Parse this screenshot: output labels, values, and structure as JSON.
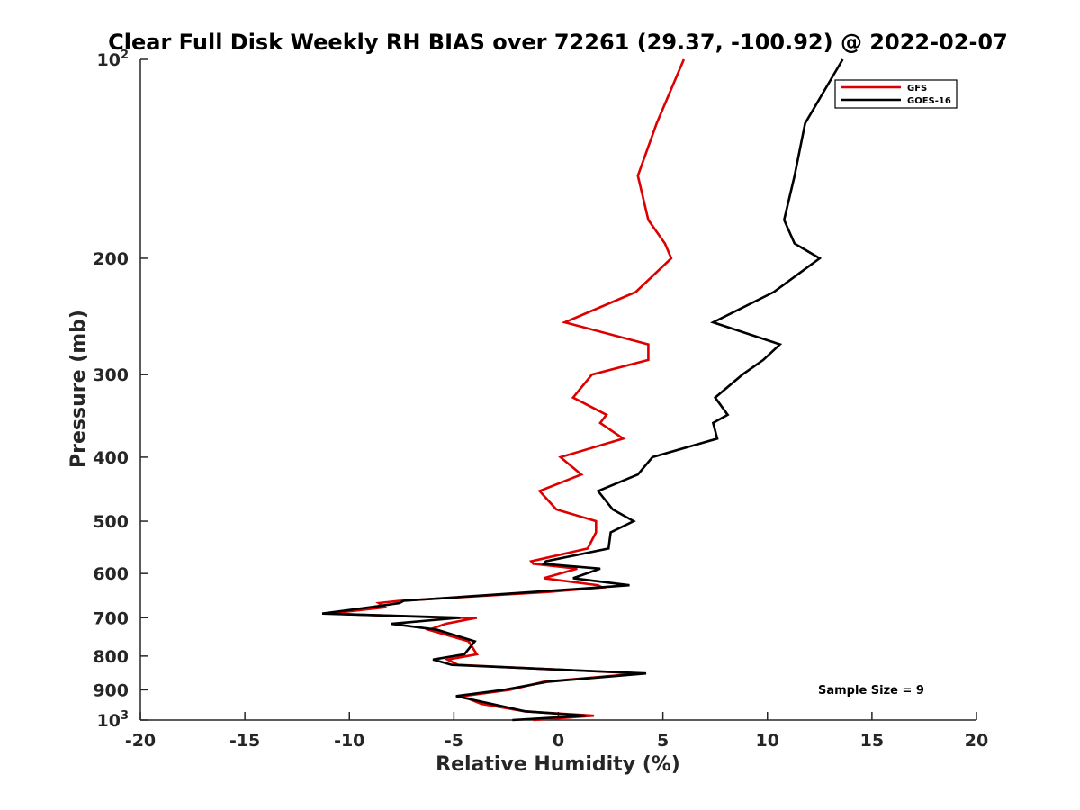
{
  "chart_data": {
    "type": "line",
    "title": "Clear Full Disk Weekly RH BIAS over 72261 (29.37, -100.92) @ 2022-02-07",
    "xlabel": "Relative Humidity (%)",
    "ylabel": "Pressure (mb)",
    "xlim": [
      -20,
      20
    ],
    "ylim": [
      100,
      1000
    ],
    "yscale": "log",
    "y_reversed": true,
    "grid": false,
    "legend_position": "top-right",
    "x_ticks": [
      -20,
      -15,
      -10,
      -5,
      0,
      5,
      10,
      15,
      20
    ],
    "x_tick_labels": [
      "-20",
      "-15",
      "-10",
      "-5",
      "0",
      "5",
      "10",
      "15",
      "20"
    ],
    "y_ticks": [
      100,
      200,
      300,
      400,
      500,
      600,
      700,
      800,
      900,
      1000
    ],
    "y_tick_labels": [
      {
        "base": "10",
        "sup": "2"
      },
      {
        "base": "200"
      },
      {
        "base": "300"
      },
      {
        "base": "400"
      },
      {
        "base": "500"
      },
      {
        "base": "600"
      },
      {
        "base": "700"
      },
      {
        "base": "800"
      },
      {
        "base": "900"
      },
      {
        "base": "10",
        "sup": "3"
      }
    ],
    "annotation": "Sample Size = 9",
    "series": [
      {
        "name": "GFS",
        "color": "#dd0000",
        "points": [
          [
            6.0,
            100
          ],
          [
            4.7,
            125
          ],
          [
            3.8,
            150
          ],
          [
            4.3,
            175
          ],
          [
            5.1,
            190
          ],
          [
            5.4,
            200
          ],
          [
            3.7,
            225
          ],
          [
            0.3,
            250
          ],
          [
            4.3,
            270
          ],
          [
            4.3,
            285
          ],
          [
            1.6,
            300
          ],
          [
            0.7,
            325
          ],
          [
            2.3,
            345
          ],
          [
            2.0,
            355
          ],
          [
            3.1,
            375
          ],
          [
            0.1,
            400
          ],
          [
            1.1,
            425
          ],
          [
            -0.9,
            450
          ],
          [
            -0.1,
            480
          ],
          [
            1.8,
            500
          ],
          [
            1.8,
            520
          ],
          [
            1.4,
            550
          ],
          [
            -1.3,
            575
          ],
          [
            -1.2,
            580
          ],
          [
            0.9,
            590
          ],
          [
            -0.7,
            610
          ],
          [
            1.9,
            625
          ],
          [
            2.1,
            630
          ],
          [
            -0.5,
            640
          ],
          [
            -7.6,
            660
          ],
          [
            -8.6,
            665
          ],
          [
            -8.3,
            675
          ],
          [
            -10.9,
            690
          ],
          [
            -5.4,
            700
          ],
          [
            -3.9,
            700
          ],
          [
            -5.4,
            715
          ],
          [
            -6.2,
            730
          ],
          [
            -4.3,
            760
          ],
          [
            -3.9,
            795
          ],
          [
            -5.3,
            810
          ],
          [
            -4.8,
            825
          ],
          [
            3.9,
            850
          ],
          [
            -0.7,
            875
          ],
          [
            -2.3,
            900
          ],
          [
            -4.6,
            920
          ],
          [
            -3.7,
            945
          ],
          [
            -1.6,
            970
          ],
          [
            1.7,
            985
          ],
          [
            -1.2,
            1000
          ]
        ]
      },
      {
        "name": "GOES-16",
        "color": "#000000",
        "points": [
          [
            13.6,
            100
          ],
          [
            11.8,
            125
          ],
          [
            11.3,
            150
          ],
          [
            10.8,
            175
          ],
          [
            11.3,
            190
          ],
          [
            12.5,
            200
          ],
          [
            10.3,
            225
          ],
          [
            7.4,
            250
          ],
          [
            10.6,
            270
          ],
          [
            9.8,
            285
          ],
          [
            8.8,
            300
          ],
          [
            7.5,
            325
          ],
          [
            8.1,
            345
          ],
          [
            7.4,
            355
          ],
          [
            7.6,
            375
          ],
          [
            4.5,
            400
          ],
          [
            3.8,
            425
          ],
          [
            1.9,
            450
          ],
          [
            2.6,
            480
          ],
          [
            3.6,
            500
          ],
          [
            2.5,
            520
          ],
          [
            2.4,
            550
          ],
          [
            -0.6,
            575
          ],
          [
            -0.7,
            580
          ],
          [
            2.0,
            590
          ],
          [
            0.7,
            610
          ],
          [
            3.4,
            625
          ],
          [
            1.9,
            630
          ],
          [
            -1.2,
            640
          ],
          [
            -7.4,
            660
          ],
          [
            -7.6,
            665
          ],
          [
            -9.0,
            675
          ],
          [
            -11.3,
            690
          ],
          [
            -4.7,
            700
          ],
          [
            -8.0,
            715
          ],
          [
            -5.8,
            730
          ],
          [
            -4.0,
            760
          ],
          [
            -4.5,
            795
          ],
          [
            -6.0,
            810
          ],
          [
            -5.1,
            825
          ],
          [
            4.2,
            850
          ],
          [
            -0.5,
            875
          ],
          [
            -2.6,
            900
          ],
          [
            -4.9,
            920
          ],
          [
            -3.2,
            945
          ],
          [
            -1.6,
            970
          ],
          [
            1.3,
            985
          ],
          [
            -2.2,
            1000
          ]
        ]
      }
    ]
  }
}
